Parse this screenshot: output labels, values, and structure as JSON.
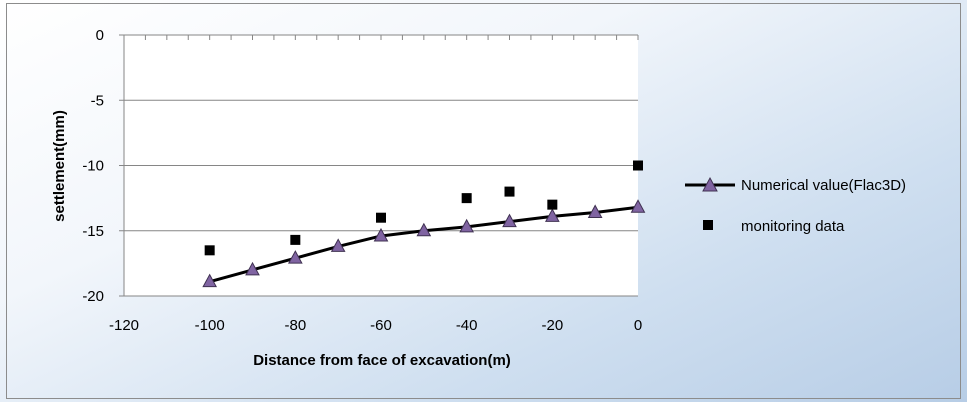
{
  "chart_data": {
    "type": "scatter",
    "xlabel": "Distance from face of excavation(m)",
    "ylabel": "settlement(mm)",
    "xlim": [
      -120,
      0
    ],
    "ylim": [
      -20,
      0
    ],
    "x_ticks": [
      -120,
      -100,
      -80,
      -60,
      -40,
      -20,
      0
    ],
    "y_ticks": [
      0,
      -5,
      -10,
      -15,
      -20
    ],
    "grid": "horizontal",
    "legend_position": "right",
    "series": [
      {
        "name": "Numerical value(Flac3D)",
        "style": "line-triangle",
        "color": "#000000",
        "marker_color": "#8064a2",
        "x": [
          -100,
          -90,
          -80,
          -70,
          -60,
          -50,
          -40,
          -30,
          -20,
          -10,
          0
        ],
        "y": [
          -18.9,
          -18.0,
          -17.1,
          -16.2,
          -15.4,
          -15.0,
          -14.7,
          -14.3,
          -13.9,
          -13.6,
          -13.2
        ]
      },
      {
        "name": "monitoring data",
        "style": "square-marker",
        "color": "#000000",
        "x": [
          -100,
          -80,
          -60,
          -40,
          -30,
          -20,
          0
        ],
        "y": [
          -16.5,
          -15.7,
          -14.0,
          -12.5,
          -12.0,
          -13.0,
          -10.0
        ]
      }
    ]
  }
}
